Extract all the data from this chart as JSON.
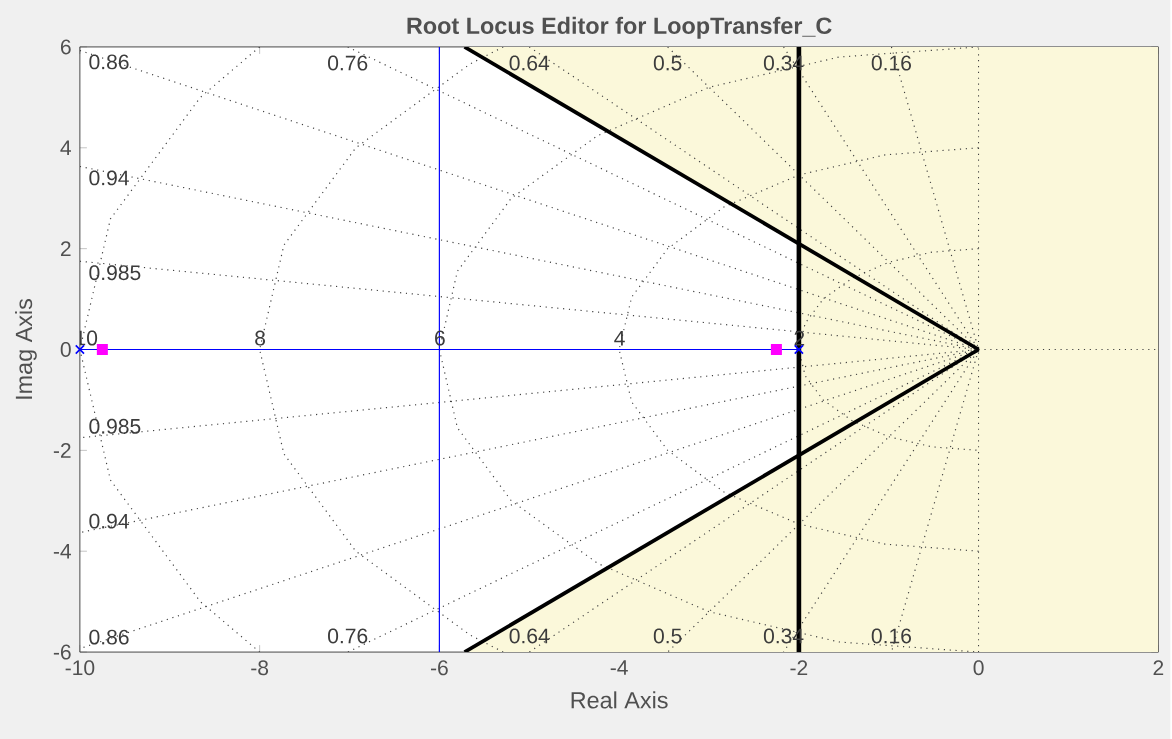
{
  "chart_data": {
    "type": "line",
    "title": "Root Locus Editor for LoopTransfer_C",
    "xlabel": "Real Axis",
    "ylabel": "Imag Axis",
    "xlim": [
      -10,
      2
    ],
    "ylim": [
      -6,
      6
    ],
    "xticks": [
      -10,
      -8,
      -6,
      -4,
      -2,
      0,
      2
    ],
    "yticks": [
      -6,
      -4,
      -2,
      0,
      2,
      4,
      6
    ],
    "bands": [
      {
        "axis": "x",
        "from": -2,
        "to": 2,
        "color": "#fbf8da"
      }
    ],
    "ref_lines": [
      {
        "axis": "x",
        "value": -2,
        "color": "#000000",
        "line_style": "solid"
      }
    ],
    "series": [
      {
        "x": [
          -5.72,
          0
        ],
        "values": [
          6,
          0
        ],
        "lower": [
          6,
          0
        ],
        "upper": [
          6,
          6
        ],
        "color": "#000000"
      },
      {
        "x": [
          -5.72,
          0
        ],
        "values": [
          -6,
          0
        ],
        "lower": [
          -6,
          -6
        ],
        "upper": [
          -6,
          0
        ],
        "color": "#000000"
      },
      {
        "name": "2",
        "x": [
          0,
          -0.52,
          -1,
          -1.41,
          -1.73,
          -1.93,
          -2,
          -1.93,
          -1.73,
          -1.41,
          -1,
          -0.52,
          0
        ],
        "values": [
          2,
          1.93,
          1.73,
          1.41,
          1,
          0.52,
          0,
          -0.52,
          -1,
          -1.41,
          -1.73,
          -1.93,
          -2
        ],
        "color": "#404040",
        "line_style": "dotted"
      },
      {
        "name": "4",
        "x": [
          0,
          -1.04,
          -2,
          -2.83,
          -3.46,
          -3.86,
          -4,
          -3.86,
          -3.46,
          -2.83,
          -2,
          -1.04,
          0
        ],
        "values": [
          4,
          3.86,
          3.46,
          2.83,
          2,
          1.04,
          0,
          -1.04,
          -2,
          -2.83,
          -3.46,
          -3.86,
          -4
        ],
        "color": "#404040",
        "line_style": "dotted"
      },
      {
        "name": "6",
        "x": [
          0,
          -1.55,
          -3,
          -4.24,
          -5.2,
          -5.8,
          -6,
          -5.8,
          -5.2,
          -4.24,
          -3,
          -1.55,
          0
        ],
        "values": [
          6,
          5.8,
          5.2,
          4.24,
          3,
          1.55,
          0,
          -1.55,
          -3,
          -4.24,
          -5.2,
          -5.8,
          -6
        ],
        "color": "#404040",
        "line_style": "dotted"
      },
      {
        "name": "8",
        "x": [
          -5.29,
          -5.66,
          -6.93,
          -7.73,
          -8,
          -7.73,
          -6.93,
          -5.66,
          -5.29
        ],
        "values": [
          6,
          5.66,
          4,
          2.07,
          0,
          -2.07,
          -4,
          -5.66,
          -6
        ],
        "color": "#404040",
        "line_style": "dotted"
      },
      {
        "name": "10",
        "x": [
          -8,
          -8.66,
          -9.66,
          -10,
          -9.66,
          -8.66,
          -8
        ],
        "values": [
          6,
          5,
          2.59,
          0,
          -2.59,
          -5,
          -6
        ],
        "color": "#404040",
        "line_style": "dotted"
      },
      {
        "x": [
          0,
          0
        ],
        "values": [
          -6,
          6
        ],
        "color": "#404040",
        "line_style": "dotted"
      },
      {
        "x": [
          0,
          2
        ],
        "values": [
          0,
          0
        ],
        "color": "#404040",
        "line_style": "dotted"
      },
      {
        "name": "0.16",
        "x": [
          -0.97,
          0,
          -0.97
        ],
        "values": [
          6,
          0,
          -6
        ],
        "color": "#404040",
        "line_style": "dotted"
      },
      {
        "name": "0.34",
        "x": [
          -2.17,
          0,
          -2.17
        ],
        "values": [
          6,
          0,
          -6
        ],
        "color": "#404040",
        "line_style": "dotted"
      },
      {
        "name": "0.5",
        "x": [
          -3.46,
          0,
          -3.46
        ],
        "values": [
          6,
          0,
          -6
        ],
        "color": "#404040",
        "line_style": "dotted"
      },
      {
        "name": "0.64",
        "x": [
          -5,
          0,
          -5
        ],
        "values": [
          6,
          0,
          -6
        ],
        "color": "#404040",
        "line_style": "dotted"
      },
      {
        "name": "0.76",
        "x": [
          -7.02,
          0,
          -7.02
        ],
        "values": [
          6,
          0,
          -6
        ],
        "color": "#404040",
        "line_style": "dotted"
      },
      {
        "name": "0.86",
        "x": [
          -10,
          0,
          -10
        ],
        "values": [
          5.93,
          0,
          -5.93
        ],
        "color": "#404040",
        "line_style": "dotted"
      },
      {
        "name": "0.94",
        "x": [
          -10,
          0,
          -10
        ],
        "values": [
          3.63,
          0,
          -3.63
        ],
        "color": "#404040",
        "line_style": "dotted"
      },
      {
        "name": "0.985",
        "x": [
          -10,
          0,
          -10
        ],
        "values": [
          1.75,
          0,
          -1.75
        ],
        "color": "#404040",
        "line_style": "dotted"
      },
      {
        "x": [
          -10,
          -2
        ],
        "values": [
          0,
          0
        ],
        "color": "#0000ff",
        "line_style": "solid"
      },
      {
        "x": [
          -6,
          -6
        ],
        "values": [
          -6,
          6
        ],
        "color": "#0000ff",
        "line_style": "solid"
      },
      {
        "type": "scatter",
        "x": [
          -10,
          -2
        ],
        "values": [
          0,
          0
        ],
        "color": "#0000ff",
        "marker": "cross"
      },
      {
        "type": "scatter",
        "x": [
          -9.75,
          -2.25
        ],
        "values": [
          0,
          0
        ],
        "color": "#ff00ff",
        "marker": "square"
      }
    ]
  }
}
